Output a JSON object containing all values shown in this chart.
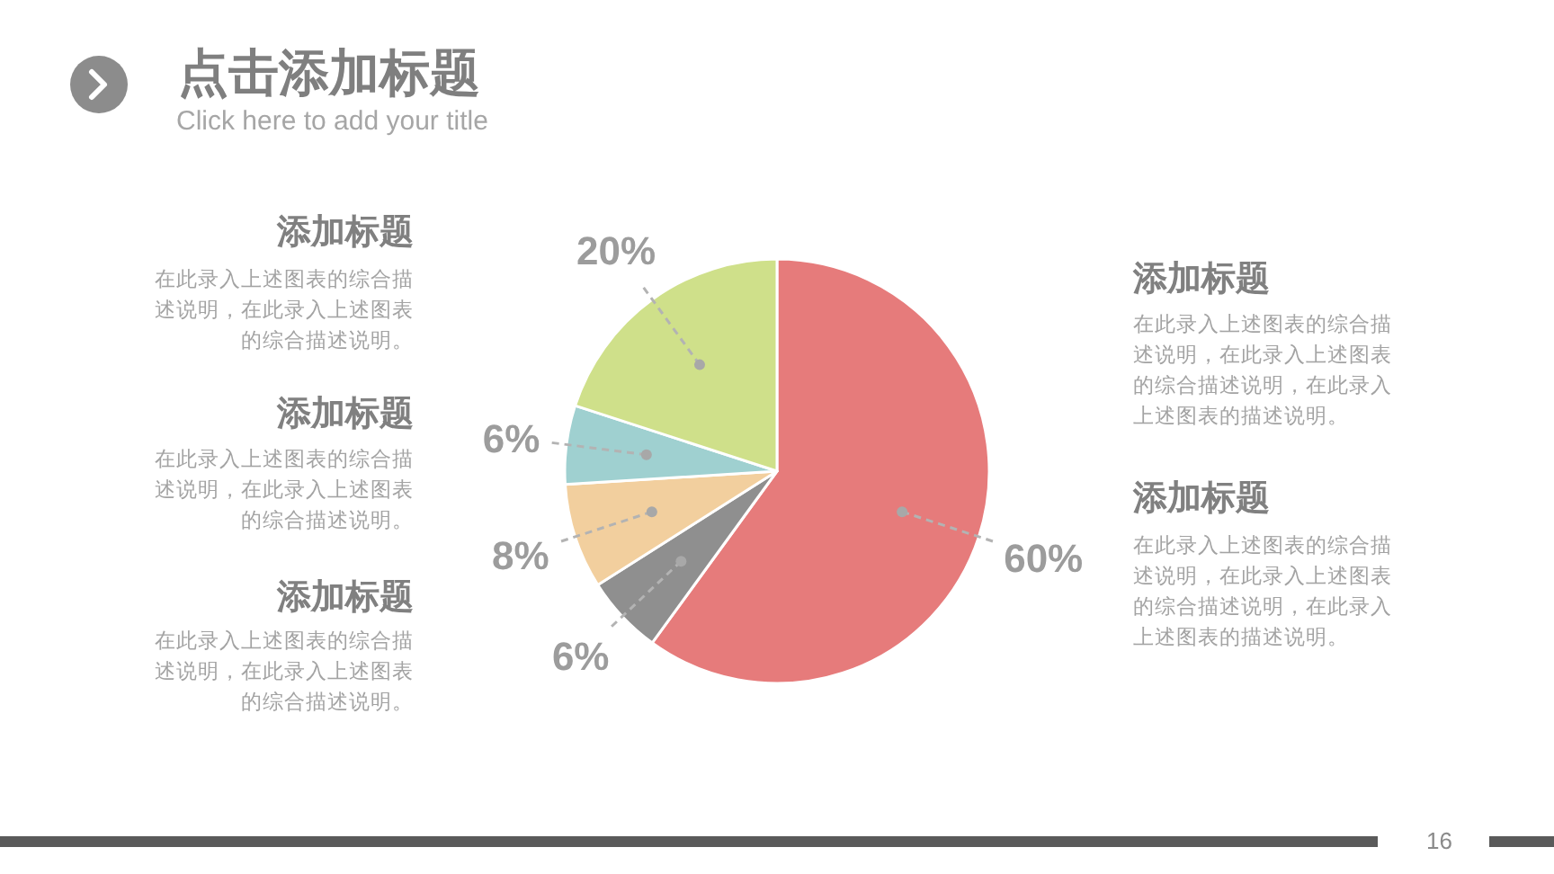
{
  "chart_data": {
    "type": "pie",
    "title": "点击添加标题",
    "subtitle": "Click here to add your title",
    "categories": [
      null,
      null,
      null,
      null,
      null
    ],
    "values": [
      60,
      6,
      8,
      6,
      20
    ],
    "colors": [
      "#e67b7b",
      "#8f8f8f",
      "#f2cf9e",
      "#9fd0d0",
      "#cfe08a"
    ],
    "value_labels": [
      "60%",
      "6%",
      "8%",
      "6%",
      "20%"
    ],
    "annotations": [
      "添加标题",
      "在此录入上述图表的综合描述说明，在此录入上述图表的综合描述说明。",
      "添加标题",
      "在此录入上述图表的综合描述说明，在此录入上述图表的综合描述说明。",
      "添加标题",
      "在此录入上述图表的综合描述说明，在此录入上述图表的综合描述说明。",
      "添加标题",
      "在此录入上述图表的综合描述说明，在此录入上述图表的综合描述说明，在此录入上述图表的描述说明。",
      "添加标题",
      "在此录入上述图表的综合描述说明，在此录入上述图表的综合描述说明，在此录入上述图表的描述说明。",
      "16"
    ]
  }
}
